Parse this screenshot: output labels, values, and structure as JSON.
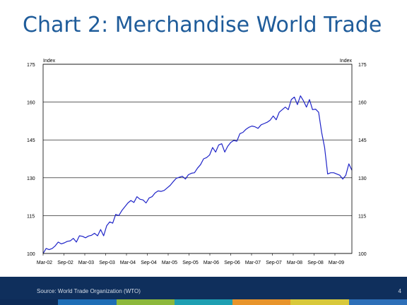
{
  "slide": {
    "title": "Chart 2: Merchandise World Trade",
    "source": "Source: World Trade Organization (WTO)",
    "page_number": "4",
    "strip_colors": [
      "#0d2b57",
      "#1e6db5",
      "#8cb83b",
      "#1e9fb2",
      "#e8942a",
      "#d8c83a",
      "#2d6fb8"
    ]
  },
  "chart_data": {
    "type": "line",
    "title": "",
    "ylabel_left": "Index",
    "ylabel_right": "Index",
    "ylim": [
      100,
      175
    ],
    "y_ticks": [
      100,
      115,
      130,
      145,
      160,
      175
    ],
    "x_tick_labels": [
      "Mar-02",
      "Sep-02",
      "Mar-03",
      "Sep-03",
      "Mar-04",
      "Sep-04",
      "Mar-05",
      "Sep-05",
      "Mar-06",
      "Sep-06",
      "Mar-07",
      "Sep-07",
      "Mar-08",
      "Sep-08",
      "Mar-09"
    ],
    "grid": true,
    "line_color": "#1f24c8",
    "series": [
      {
        "values": [
          100.0,
          102.0,
          101.5,
          102.0,
          103.0,
          104.5,
          103.8,
          104.2,
          104.8,
          105.0,
          106.0,
          104.5,
          107.0,
          106.8,
          106.2,
          106.9,
          107.2,
          108.0,
          107.0,
          109.5,
          107.0,
          111.0,
          112.5,
          112.0,
          115.5,
          115.0,
          117.0,
          118.5,
          120.0,
          121.0,
          120.2,
          122.5,
          121.5,
          121.2,
          120.0,
          122.0,
          122.5,
          124.0,
          124.8,
          124.6,
          125.0,
          126.0,
          127.0,
          128.5,
          129.8,
          130.2,
          130.6,
          129.5,
          131.2,
          131.8,
          132.0,
          133.8,
          135.2,
          137.5,
          138.0,
          139.0,
          142.0,
          140.2,
          143.0,
          143.5,
          140.2,
          142.5,
          144.0,
          144.8,
          144.5,
          147.5,
          148.0,
          149.2,
          150.0,
          150.5,
          150.2,
          149.6,
          151.0,
          151.5,
          152.0,
          152.8,
          154.5,
          153.0,
          156.0,
          157.0,
          158.0,
          157.0,
          161.0,
          162.0,
          159.0,
          162.5,
          160.5,
          158.0,
          161.0,
          157.0,
          157.2,
          156.0,
          148.0,
          142.0,
          131.5,
          132.0,
          132.0,
          131.5,
          131.0,
          129.5,
          131.0,
          135.5,
          133.0
        ]
      }
    ]
  }
}
